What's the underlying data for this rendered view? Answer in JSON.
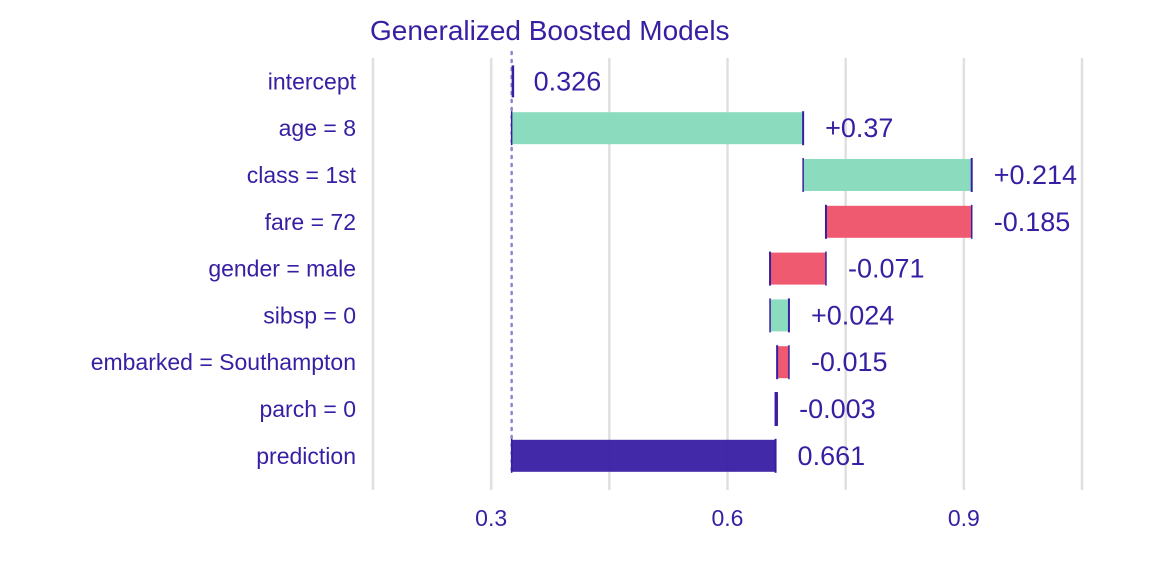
{
  "chart_data": {
    "type": "bar",
    "subtype": "waterfall",
    "title": "Generalized Boosted Models",
    "xlabel": "",
    "ylabel": "",
    "xlim": [
      0.15,
      1.05
    ],
    "x_ticks": [
      0.3,
      0.6,
      0.9
    ],
    "x_tick_labels": [
      "0.3",
      "0.6",
      "0.9"
    ],
    "grid": true,
    "baseline": 0.326,
    "colors": {
      "positive": "#8bdcbe",
      "negative": "#f05a71",
      "prediction": "#371ea3",
      "text": "#371ea3",
      "grid": "#e0e0e0"
    },
    "bars": [
      {
        "label": "intercept",
        "start": 0.326,
        "end": 0.326,
        "value_label": "0.326",
        "kind": "intercept"
      },
      {
        "label": "age = 8",
        "start": 0.326,
        "end": 0.696,
        "value_label": "+0.37",
        "kind": "positive"
      },
      {
        "label": "class = 1st",
        "start": 0.696,
        "end": 0.91,
        "value_label": "+0.214",
        "kind": "positive"
      },
      {
        "label": "fare = 72",
        "start": 0.91,
        "end": 0.725,
        "value_label": "-0.185",
        "kind": "negative"
      },
      {
        "label": "gender = male",
        "start": 0.725,
        "end": 0.654,
        "value_label": "-0.071",
        "kind": "negative"
      },
      {
        "label": "sibsp = 0",
        "start": 0.654,
        "end": 0.678,
        "value_label": "+0.024",
        "kind": "positive"
      },
      {
        "label": "embarked = Southampton",
        "start": 0.678,
        "end": 0.663,
        "value_label": "-0.015",
        "kind": "negative"
      },
      {
        "label": "parch = 0",
        "start": 0.663,
        "end": 0.661,
        "value_label": "-0.003",
        "kind": "negative"
      },
      {
        "label": "prediction",
        "start": 0.326,
        "end": 0.661,
        "value_label": "0.661",
        "kind": "prediction"
      }
    ]
  }
}
